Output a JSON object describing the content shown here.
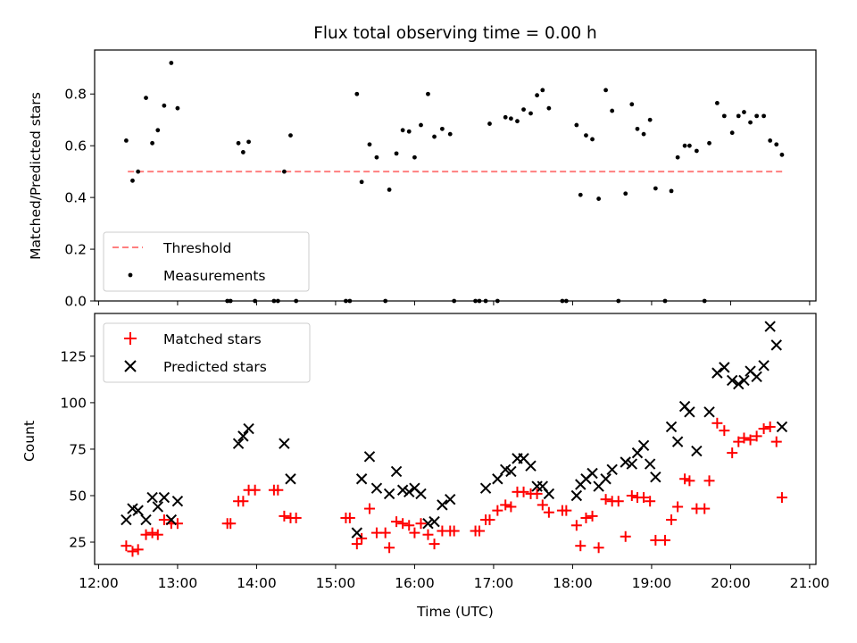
{
  "chart_data": [
    {
      "type": "scatter",
      "title": "Flux total observing time = 0.00 h",
      "xlabel": "",
      "ylabel": "Matched/Predicted stars",
      "xlim": [
        11.95,
        21.08
      ],
      "ylim": [
        0,
        0.97
      ],
      "yticks": [
        0,
        0.2,
        0.4,
        0.6,
        0.8
      ],
      "ytick_labels": [
        "0.0",
        "0.2",
        "0.4",
        "0.6",
        "0.8"
      ],
      "legend_position": "lower-left",
      "threshold": {
        "name": "Threshold",
        "value": 0.5,
        "x_range": [
          12.37,
          20.68
        ],
        "color": "#ff7f7f"
      },
      "series": [
        {
          "name": "Measurements",
          "marker": "dot",
          "color": "#000000",
          "x": [
            12.35,
            12.43,
            12.5,
            12.6,
            12.68,
            12.75,
            12.83,
            12.92,
            13.0,
            13.63,
            13.67,
            13.77,
            13.83,
            13.9,
            13.98,
            14.22,
            14.27,
            14.35,
            14.43,
            14.5,
            15.13,
            15.18,
            15.27,
            15.33,
            15.43,
            15.52,
            15.63,
            15.68,
            15.77,
            15.85,
            15.93,
            16.0,
            16.08,
            16.17,
            16.25,
            16.35,
            16.45,
            16.5,
            16.77,
            16.82,
            16.9,
            16.95,
            17.05,
            17.15,
            17.22,
            17.3,
            17.38,
            17.47,
            17.55,
            17.62,
            17.7,
            17.87,
            17.92,
            18.05,
            18.1,
            18.17,
            18.25,
            18.33,
            18.42,
            18.5,
            18.58,
            18.67,
            18.75,
            18.82,
            18.9,
            18.98,
            19.05,
            19.17,
            19.25,
            19.33,
            19.42,
            19.48,
            19.57,
            19.67,
            19.73,
            19.83,
            19.92,
            20.02,
            20.1,
            20.17,
            20.25,
            20.33,
            20.42,
            20.5,
            20.58,
            20.65
          ],
          "y": [
            0.62,
            0.465,
            0.5,
            0.785,
            0.61,
            0.66,
            0.755,
            0.92,
            0.745,
            0.0,
            0.0,
            0.61,
            0.575,
            0.615,
            0.0,
            0.0,
            0.0,
            0.5,
            0.64,
            0.0,
            0.0,
            0.0,
            0.8,
            0.46,
            0.605,
            0.555,
            0.0,
            0.43,
            0.57,
            0.66,
            0.655,
            0.555,
            0.68,
            0.8,
            0.635,
            0.665,
            0.645,
            0.0,
            0.0,
            0.0,
            0.0,
            0.685,
            0.0,
            0.71,
            0.705,
            0.695,
            0.74,
            0.725,
            0.795,
            0.815,
            0.745,
            0.0,
            0.0,
            0.68,
            0.41,
            0.64,
            0.625,
            0.395,
            0.815,
            0.735,
            0.0,
            0.415,
            0.76,
            0.665,
            0.645,
            0.7,
            0.435,
            0.0,
            0.425,
            0.555,
            0.6,
            0.6,
            0.58,
            0.0,
            0.61,
            0.765,
            0.715,
            0.65,
            0.715,
            0.73,
            0.69,
            0.715,
            0.715,
            0.62,
            0.605,
            0.565
          ]
        }
      ]
    },
    {
      "type": "scatter",
      "title": "",
      "xlabel": "Time (UTC)",
      "ylabel": "Count",
      "xlim": [
        11.95,
        21.08
      ],
      "ylim": [
        13,
        148
      ],
      "yticks": [
        25,
        50,
        75,
        100,
        125
      ],
      "xticks": [
        12,
        13,
        14,
        15,
        16,
        17,
        18,
        19,
        20,
        21
      ],
      "xtick_labels": [
        "12:00",
        "13:00",
        "14:00",
        "15:00",
        "16:00",
        "17:00",
        "18:00",
        "19:00",
        "20:00",
        "21:00"
      ],
      "legend_position": "upper-left",
      "series": [
        {
          "name": "Matched stars",
          "marker": "plus",
          "color": "#ff0000",
          "x": [
            12.35,
            12.43,
            12.5,
            12.6,
            12.68,
            12.75,
            12.83,
            12.92,
            13.0,
            13.63,
            13.67,
            13.77,
            13.83,
            13.9,
            13.98,
            14.22,
            14.27,
            14.35,
            14.43,
            14.5,
            15.13,
            15.18,
            15.27,
            15.33,
            15.43,
            15.52,
            15.63,
            15.68,
            15.77,
            15.85,
            15.93,
            16.0,
            16.08,
            16.17,
            16.25,
            16.35,
            16.45,
            16.5,
            16.77,
            16.82,
            16.9,
            16.95,
            17.05,
            17.15,
            17.22,
            17.3,
            17.38,
            17.47,
            17.55,
            17.62,
            17.7,
            17.87,
            17.92,
            18.05,
            18.1,
            18.17,
            18.25,
            18.33,
            18.42,
            18.5,
            18.58,
            18.67,
            18.75,
            18.82,
            18.9,
            18.98,
            19.05,
            19.17,
            19.25,
            19.33,
            19.42,
            19.48,
            19.57,
            19.67,
            19.73,
            19.83,
            19.92,
            20.02,
            20.1,
            20.17,
            20.25,
            20.33,
            20.42,
            20.5,
            20.58,
            20.65
          ],
          "y": [
            23,
            20,
            21,
            29,
            30,
            29,
            37,
            35,
            35,
            35,
            35,
            47,
            47,
            53,
            53,
            53,
            53,
            39,
            38,
            38,
            38,
            38,
            24,
            27,
            43,
            30,
            30,
            22,
            36,
            35,
            34,
            30,
            35,
            29,
            24,
            31,
            31,
            31,
            31,
            31,
            37,
            37,
            42,
            45,
            44,
            52,
            52,
            51,
            51,
            45,
            41,
            42,
            42,
            34,
            23,
            38,
            39,
            22,
            48,
            47,
            47,
            28,
            50,
            49,
            49,
            47,
            26,
            26,
            37,
            44,
            59,
            58,
            43,
            43,
            58,
            89,
            85,
            73,
            79,
            81,
            80,
            82,
            86,
            87,
            79,
            49
          ]
        },
        {
          "name": "Predicted stars",
          "marker": "x",
          "color": "#000000",
          "x": [
            12.35,
            12.43,
            12.5,
            12.6,
            12.68,
            12.75,
            12.83,
            12.92,
            13.0,
            13.77,
            13.83,
            13.9,
            14.35,
            14.43,
            15.27,
            15.33,
            15.43,
            15.52,
            15.68,
            15.77,
            15.85,
            15.93,
            16.0,
            16.08,
            16.17,
            16.25,
            16.35,
            16.45,
            16.9,
            17.05,
            17.15,
            17.22,
            17.3,
            17.38,
            17.47,
            17.55,
            17.62,
            17.7,
            18.05,
            18.1,
            18.17,
            18.25,
            18.33,
            18.42,
            18.5,
            18.67,
            18.75,
            18.82,
            18.9,
            18.98,
            19.05,
            19.25,
            19.33,
            19.42,
            19.48,
            19.57,
            19.73,
            19.83,
            19.92,
            20.02,
            20.1,
            20.17,
            20.25,
            20.33,
            20.42,
            20.5,
            20.58,
            20.65
          ],
          "y": [
            37,
            43,
            42,
            37,
            49,
            44,
            49,
            37,
            47,
            78,
            82,
            86,
            78,
            59,
            30,
            59,
            71,
            54,
            51,
            63,
            53,
            52,
            54,
            51,
            35,
            36,
            45,
            48,
            54,
            59,
            64,
            63,
            70,
            70,
            66,
            55,
            55,
            51,
            50,
            56,
            59,
            62,
            55,
            59,
            64,
            68,
            67,
            73,
            77,
            67,
            60,
            87,
            79,
            98,
            95,
            74,
            95,
            116,
            119,
            112,
            110,
            112,
            117,
            114,
            120,
            141,
            131,
            87
          ]
        }
      ]
    }
  ]
}
